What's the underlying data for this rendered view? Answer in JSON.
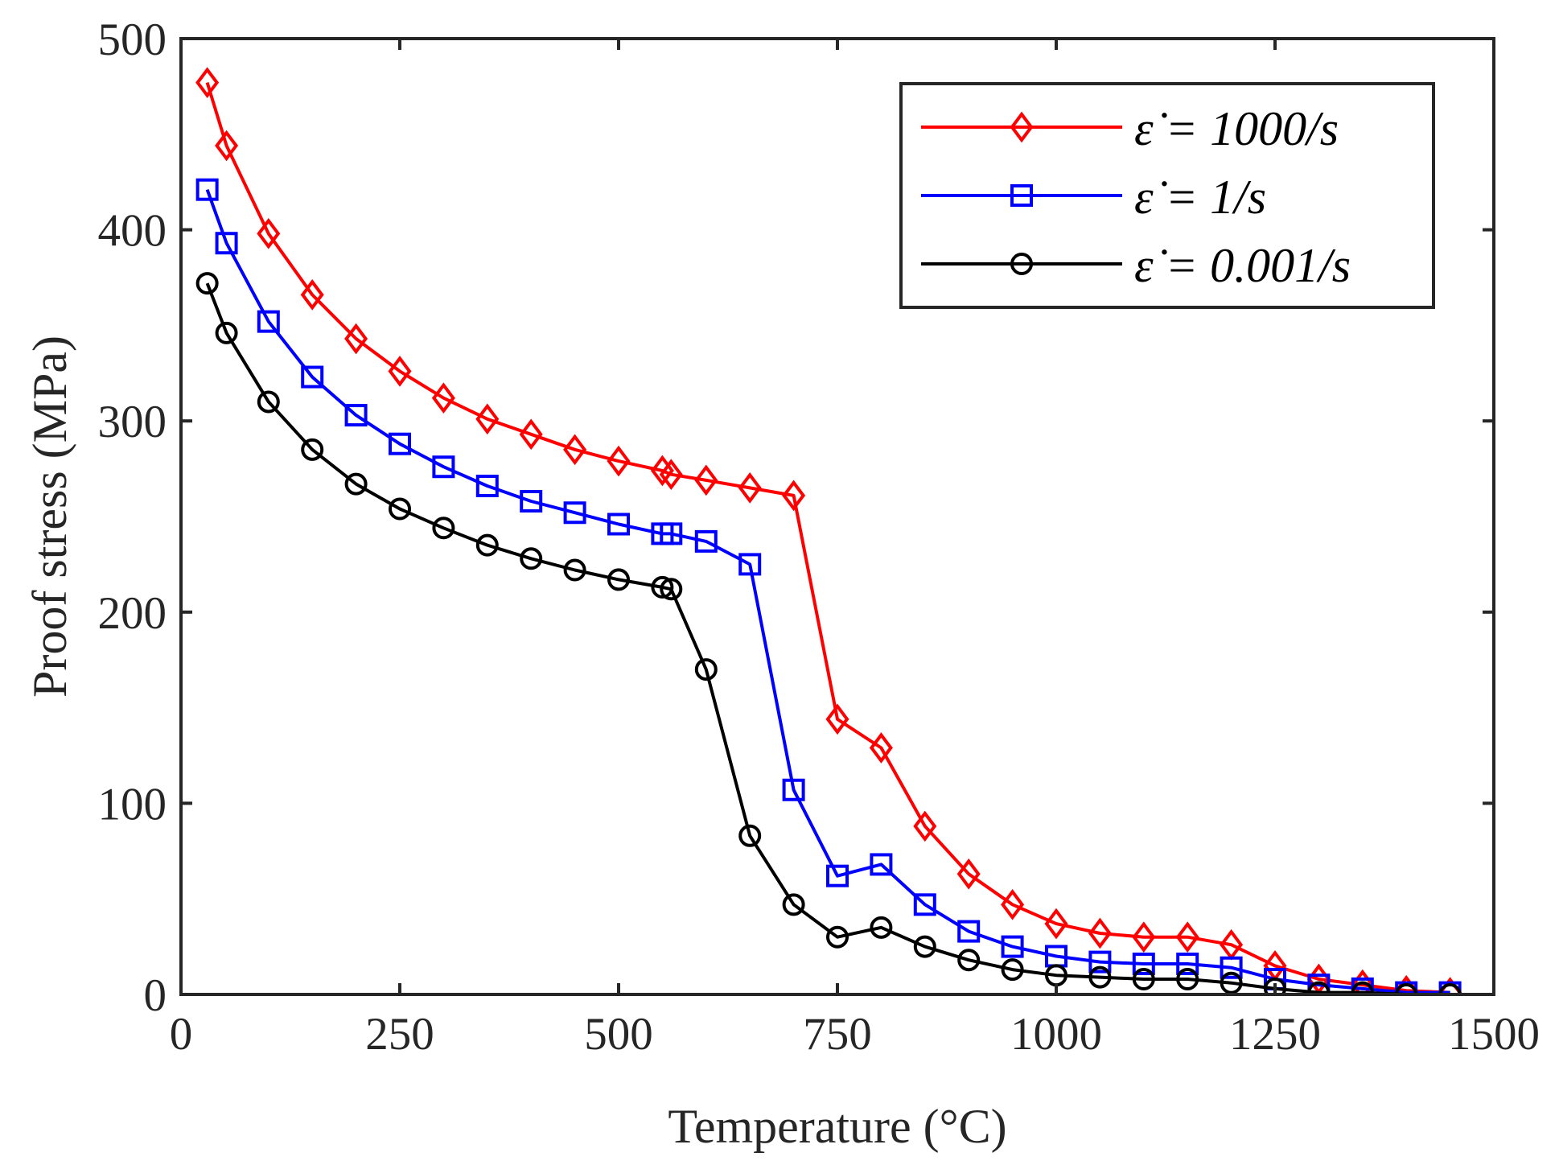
{
  "chart_data": {
    "type": "line",
    "xlabel": "Temperature (°C)",
    "ylabel": "Proof stress (MPa)",
    "xlim": [
      0,
      1500
    ],
    "ylim": [
      0,
      500
    ],
    "xticks": [
      0,
      250,
      500,
      750,
      1000,
      1250,
      1500
    ],
    "yticks": [
      0,
      100,
      200,
      300,
      400,
      500
    ],
    "grid": false,
    "legend_position": "top-right",
    "series": [
      {
        "name": "ε̇ = 1000/s",
        "color": "#ff0000",
        "marker": "diamond",
        "x": [
          30,
          52,
          100,
          150,
          200,
          250,
          300,
          350,
          400,
          450,
          500,
          550,
          560,
          600,
          650,
          700,
          750,
          800,
          850,
          900,
          950,
          1000,
          1050,
          1100,
          1150,
          1200,
          1250,
          1300,
          1350,
          1400,
          1450
        ],
        "y": [
          477,
          444,
          398,
          366,
          343,
          326,
          312,
          301,
          293,
          285,
          279,
          274,
          272,
          269,
          265,
          261,
          144,
          129,
          88,
          63,
          47,
          37,
          32,
          30,
          30,
          26,
          15,
          8,
          5,
          2,
          1
        ]
      },
      {
        "name": "ε̇ = 1/s",
        "color": "#0000ff",
        "marker": "square",
        "x": [
          30,
          52,
          100,
          150,
          200,
          250,
          300,
          350,
          400,
          450,
          500,
          550,
          560,
          600,
          650,
          700,
          750,
          800,
          850,
          900,
          950,
          1000,
          1050,
          1100,
          1150,
          1200,
          1250,
          1300,
          1350,
          1400,
          1450
        ],
        "y": [
          421,
          393,
          352,
          323,
          303,
          288,
          276,
          266,
          258,
          252,
          246,
          241,
          241,
          237,
          225,
          107,
          62,
          68,
          47,
          33,
          25,
          20,
          17,
          16,
          16,
          14,
          8,
          5,
          3,
          1,
          1
        ]
      },
      {
        "name": "ε̇ = 0.001/s",
        "color": "#000000",
        "marker": "circle",
        "x": [
          30,
          52,
          100,
          150,
          200,
          250,
          300,
          350,
          400,
          450,
          500,
          550,
          560,
          600,
          650,
          700,
          750,
          800,
          850,
          900,
          950,
          1000,
          1050,
          1100,
          1150,
          1200,
          1250,
          1300,
          1350,
          1400,
          1450
        ],
        "y": [
          372,
          346,
          310,
          285,
          267,
          254,
          244,
          235,
          228,
          222,
          217,
          213,
          212,
          170,
          83,
          47,
          30,
          35,
          25,
          18,
          13,
          10,
          9,
          8,
          8,
          6,
          3,
          1,
          1,
          0,
          0
        ]
      }
    ]
  }
}
